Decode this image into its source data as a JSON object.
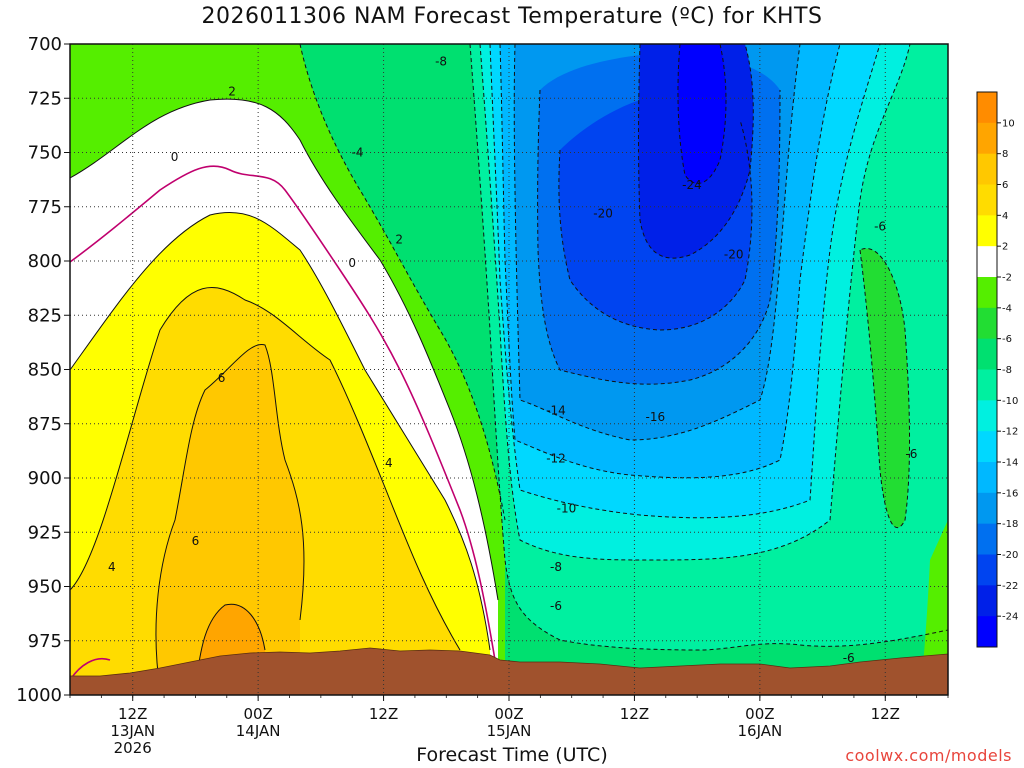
{
  "title": "2026011306 NAM Forecast Temperature (ºC) for KHTS",
  "credit": "coolwx.com/models",
  "chart_data": {
    "type": "heatmap",
    "title": "2026011306 NAM Forecast Temperature (ºC) for KHTS",
    "xlabel": "Forecast Time (UTC)",
    "ylabel": "",
    "y_ticks": [
      "700",
      "725",
      "750",
      "775",
      "800",
      "825",
      "850",
      "875",
      "900",
      "925",
      "950",
      "975",
      "1000"
    ],
    "ylim": [
      1000,
      700
    ],
    "x_ticks": [
      {
        "hour": 6,
        "lines": [
          "12Z",
          "13JAN",
          "2026"
        ]
      },
      {
        "hour": 18,
        "lines": [
          "00Z",
          "14JAN"
        ]
      },
      {
        "hour": 30,
        "lines": [
          "12Z"
        ]
      },
      {
        "hour": 42,
        "lines": [
          "00Z",
          "15JAN"
        ]
      },
      {
        "hour": 54,
        "lines": [
          "12Z"
        ]
      },
      {
        "hour": 66,
        "lines": [
          "00Z",
          "16JAN"
        ]
      },
      {
        "hour": 78,
        "lines": [
          "12Z"
        ]
      }
    ],
    "xlim_hours": [
      0,
      84
    ],
    "grid": true,
    "colorbar": {
      "labels": [
        "10",
        "8",
        "6",
        "4",
        "2",
        "-2",
        "-4",
        "-6",
        "-8",
        "-10",
        "-12",
        "-14",
        "-16",
        "-18",
        "-20",
        "-22",
        "-24"
      ],
      "colors": [
        "#ff8c00",
        "#ffa500",
        "#ffc800",
        "#ffdc00",
        "#ffff00",
        "#ffffff",
        "#55ee00",
        "#22dd33",
        "#00e070",
        "#00f0a0",
        "#00f0e0",
        "#00d8ff",
        "#00b8ff",
        "#0098f0",
        "#0070f0",
        "#0044f0",
        "#0020e8",
        "#0000ff"
      ]
    },
    "contour_labels": [
      {
        "text": "-8",
        "t": 35.5,
        "p": 708
      },
      {
        "text": "2",
        "t": 15.5,
        "p": 722
      },
      {
        "text": "0",
        "t": 10,
        "p": 752
      },
      {
        "text": "-4",
        "t": 27.5,
        "p": 750
      },
      {
        "text": "2",
        "t": 31.5,
        "p": 790
      },
      {
        "text": "0",
        "t": 27,
        "p": 801
      },
      {
        "text": "-24",
        "t": 59.5,
        "p": 765
      },
      {
        "text": "-20",
        "t": 51,
        "p": 778
      },
      {
        "text": "-20",
        "t": 63.5,
        "p": 797
      },
      {
        "text": "-6",
        "t": 77.5,
        "p": 784
      },
      {
        "text": "6",
        "t": 14.5,
        "p": 854
      },
      {
        "text": "-14",
        "t": 46.5,
        "p": 869
      },
      {
        "text": "-16",
        "t": 56,
        "p": 872
      },
      {
        "text": "4",
        "t": 30.5,
        "p": 893
      },
      {
        "text": "-12",
        "t": 46.5,
        "p": 891
      },
      {
        "text": "-6",
        "t": 80.5,
        "p": 889
      },
      {
        "text": "-10",
        "t": 47.5,
        "p": 914
      },
      {
        "text": "6",
        "t": 12,
        "p": 929
      },
      {
        "text": "-8",
        "t": 46.5,
        "p": 941
      },
      {
        "text": "4",
        "t": 4,
        "p": 941
      },
      {
        "text": "-6",
        "t": 46.5,
        "p": 959
      },
      {
        "text": "-6",
        "t": 74.5,
        "p": 983
      }
    ],
    "temperature_bands": [
      {
        "label": "-24",
        "t": [
          58.5,
          63
        ],
        "p": [
          700,
          770
        ]
      },
      {
        "label": "-22",
        "t": [
          56,
          64.5
        ],
        "p": [
          710,
          820
        ]
      },
      {
        "label": "-20",
        "t": [
          52,
          65.5
        ],
        "p": [
          725,
          850
        ]
      },
      {
        "label": "-18",
        "t": [
          48,
          67
        ],
        "p": [
          720,
          870
        ]
      },
      {
        "label": "-16",
        "t": [
          45,
          68
        ],
        "p": [
          710,
          890
        ]
      },
      {
        "label": "-14",
        "t": [
          44,
          70
        ],
        "p": [
          700,
          905
        ]
      },
      {
        "label": "-12",
        "t": [
          43,
          71
        ],
        "p": [
          700,
          925
        ]
      },
      {
        "label": "-10",
        "t": [
          42.5,
          72.5
        ],
        "p": [
          700,
          945
        ]
      },
      {
        "label": "-8",
        "t": [
          42,
          74
        ],
        "p": [
          700,
          968
        ]
      },
      {
        "label": "6",
        "t": [
          11,
          25
        ],
        "p": [
          830,
          985
        ]
      },
      {
        "label": "8",
        "t": [
          14,
          18
        ],
        "p": [
          945,
          985
        ]
      }
    ]
  }
}
